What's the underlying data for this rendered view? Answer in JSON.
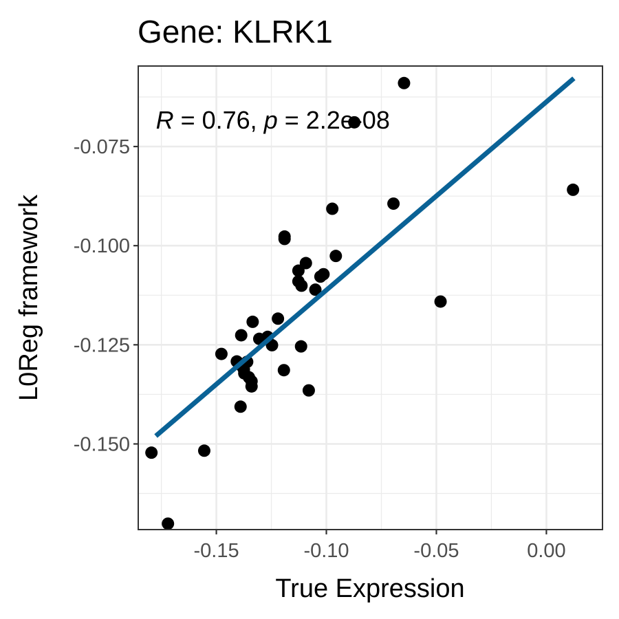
{
  "chart_data": {
    "type": "scatter",
    "title": "Gene: KLRK1",
    "xlabel": "True Expression",
    "ylabel": "L0Reg framework",
    "xlim": [
      -0.1855,
      0.0255
    ],
    "ylim": [
      -0.1716,
      -0.0547
    ],
    "x_ticks": [
      -0.15,
      -0.1,
      -0.05,
      0.0
    ],
    "x_tick_labels": [
      "-0.15",
      "-0.10",
      "-0.05",
      "0.00"
    ],
    "x_minor_ticks": [
      -0.175,
      -0.125,
      -0.075,
      -0.025
    ],
    "y_ticks": [
      -0.15,
      -0.125,
      -0.1,
      -0.075
    ],
    "y_tick_labels": [
      "-0.150",
      "-0.125",
      "-0.100",
      "-0.075"
    ],
    "y_minor_ticks": [
      -0.1625,
      -0.1375,
      -0.1125,
      -0.0875,
      -0.0625
    ],
    "grid": true,
    "annotation": {
      "r_symbol": "R",
      "r_text": " = 0.76, ",
      "p_symbol": "p",
      "p_text": " = 2.2e-08",
      "x": -0.1775,
      "y": -0.0705
    },
    "point_color": "#000000",
    "line_color": "#0a6296",
    "fit_line": {
      "x": [
        -0.1775,
        0.0125
      ],
      "y": [
        -0.148,
        -0.0578
      ]
    },
    "points": [
      {
        "x": -0.0647,
        "y": -0.059
      },
      {
        "x": -0.0873,
        "y": -0.0689
      },
      {
        "x": 0.0121,
        "y": -0.0859
      },
      {
        "x": -0.0695,
        "y": -0.0894
      },
      {
        "x": -0.0973,
        "y": -0.0907
      },
      {
        "x": -0.119,
        "y": -0.0977
      },
      {
        "x": -0.119,
        "y": -0.0983
      },
      {
        "x": -0.0957,
        "y": -0.1026
      },
      {
        "x": -0.1093,
        "y": -0.1044
      },
      {
        "x": -0.1127,
        "y": -0.1063
      },
      {
        "x": -0.1013,
        "y": -0.1072
      },
      {
        "x": -0.1027,
        "y": -0.1078
      },
      {
        "x": -0.1127,
        "y": -0.109
      },
      {
        "x": -0.1113,
        "y": -0.1101
      },
      {
        "x": -0.105,
        "y": -0.1111
      },
      {
        "x": -0.0481,
        "y": -0.1141
      },
      {
        "x": -0.122,
        "y": -0.1184
      },
      {
        "x": -0.1335,
        "y": -0.1192
      },
      {
        "x": -0.1387,
        "y": -0.1226
      },
      {
        "x": -0.1305,
        "y": -0.1235
      },
      {
        "x": -0.1267,
        "y": -0.123
      },
      {
        "x": -0.1247,
        "y": -0.1251
      },
      {
        "x": -0.1115,
        "y": -0.1254
      },
      {
        "x": -0.1477,
        "y": -0.1273
      },
      {
        "x": -0.1407,
        "y": -0.1292
      },
      {
        "x": -0.136,
        "y": -0.1293
      },
      {
        "x": -0.1385,
        "y": -0.1303
      },
      {
        "x": -0.1375,
        "y": -0.1312
      },
      {
        "x": -0.1373,
        "y": -0.1322
      },
      {
        "x": -0.1352,
        "y": -0.1332
      },
      {
        "x": -0.134,
        "y": -0.1342
      },
      {
        "x": -0.134,
        "y": -0.1355
      },
      {
        "x": -0.1193,
        "y": -0.1314
      },
      {
        "x": -0.108,
        "y": -0.1365
      },
      {
        "x": -0.139,
        "y": -0.1406
      },
      {
        "x": -0.1555,
        "y": -0.1517
      },
      {
        "x": -0.1795,
        "y": -0.1522
      },
      {
        "x": -0.172,
        "y": -0.1701
      }
    ]
  }
}
